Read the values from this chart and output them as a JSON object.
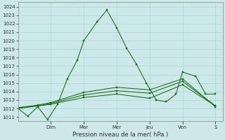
{
  "ylabel": "Pression niveau de la mer( hPa )",
  "ylim": [
    1010.5,
    1024.5
  ],
  "yticks": [
    1011,
    1012,
    1013,
    1014,
    1015,
    1016,
    1017,
    1018,
    1019,
    1020,
    1021,
    1022,
    1023,
    1024
  ],
  "day_labels": [
    "Dim",
    "Mar",
    "Mer",
    "Jeu",
    "Ven",
    "S"
  ],
  "day_tick_x": [
    2.33,
    4.66,
    7.0,
    9.33,
    11.66,
    14.0
  ],
  "xlim": [
    0,
    14.5
  ],
  "background_color": "#cce8e8",
  "grid_color": "#aacfcf",
  "line_color": "#1a6b1a",
  "series": [
    {
      "x": [
        0.0,
        0.7,
        1.4,
        2.1,
        2.8,
        3.5,
        4.2,
        4.66,
        5.6,
        6.3,
        7.0,
        7.7,
        8.4,
        9.1,
        9.8,
        10.5,
        11.2,
        11.66,
        12.6,
        13.3,
        14.0
      ],
      "y": [
        1012.0,
        1011.1,
        1012.2,
        1010.7,
        1012.5,
        1015.5,
        1017.7,
        1020.0,
        1022.2,
        1023.6,
        1021.5,
        1019.1,
        1017.2,
        1015.0,
        1013.0,
        1012.8,
        1013.7,
        1016.3,
        1015.8,
        1013.7,
        1013.7
      ]
    },
    {
      "x": [
        0.0,
        1.4,
        2.33,
        4.66,
        7.0,
        9.33,
        11.66,
        14.0
      ],
      "y": [
        1012.0,
        1012.3,
        1012.5,
        1013.3,
        1013.7,
        1013.2,
        1014.8,
        1012.3
      ]
    },
    {
      "x": [
        0.0,
        1.4,
        2.33,
        4.66,
        7.0,
        9.33,
        11.66,
        14.0
      ],
      "y": [
        1012.1,
        1012.3,
        1012.6,
        1013.6,
        1014.1,
        1013.8,
        1015.2,
        1012.3
      ]
    },
    {
      "x": [
        0.0,
        1.4,
        2.33,
        4.66,
        7.0,
        9.33,
        11.66,
        14.0
      ],
      "y": [
        1012.1,
        1012.4,
        1012.7,
        1013.9,
        1014.5,
        1014.2,
        1015.5,
        1012.2
      ]
    }
  ],
  "ylabel_fontsize": 6.0,
  "tick_fontsize": 5.0,
  "line_width": 0.75,
  "marker_size": 1.8
}
